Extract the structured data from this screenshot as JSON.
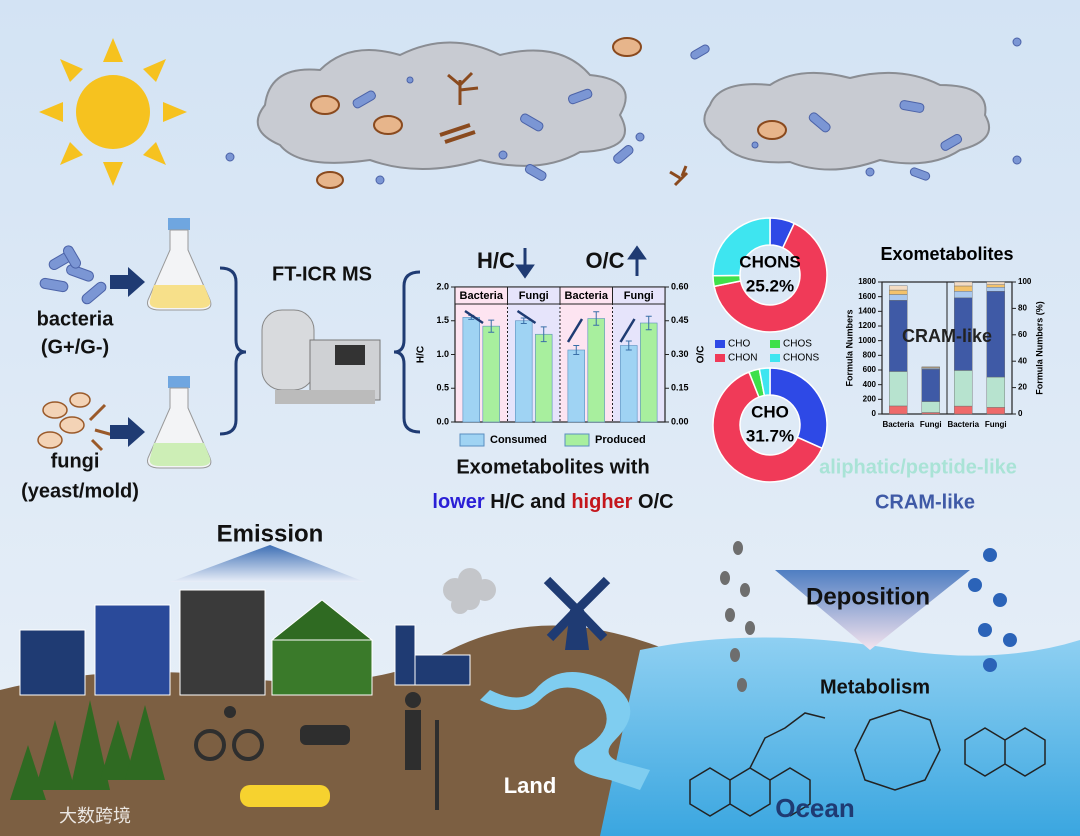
{
  "labels": {
    "bacteria": "bacteria",
    "bacteria_sub": "(G+/G-)",
    "fungi": "fungi",
    "fungi_sub": "(yeast/mold)",
    "instrument": "FT-ICR MS",
    "hc_title": "H/C",
    "oc_title": "O/C",
    "conclusion_title": "Exometabolites with",
    "conclusion": [
      "lower",
      "H/C and",
      "higher",
      "O/C"
    ],
    "aliphatic": "aliphatic/peptide-like",
    "cram": "CRAM-like",
    "emission": "Emission",
    "deposition": "Deposition",
    "metabolism": "Metabolism",
    "land": "Land",
    "ocean": "Ocean",
    "watermark": "大数跨境"
  },
  "chart_data": [
    {
      "type": "bar",
      "categories": [
        "Bacteria",
        "Fungi",
        "Bacteria",
        "Fungi"
      ],
      "category_axis": [
        "y",
        "y",
        "y2",
        "y2"
      ],
      "category_fills": [
        "#fde4f1",
        "#e6e4fb",
        "#fde4f1",
        "#e6e4fb"
      ],
      "series": [
        {
          "name": "Consumed",
          "color": "#9fd3f3",
          "values": [
            1.55,
            1.5,
            0.32,
            0.34
          ],
          "errors": [
            0.03,
            0.04,
            0.02,
            0.02
          ]
        },
        {
          "name": "Produced",
          "color": "#a8ef9e",
          "values": [
            1.42,
            1.3,
            0.46,
            0.44
          ],
          "errors": [
            0.09,
            0.11,
            0.03,
            0.03
          ]
        }
      ],
      "ylabel": "H/C",
      "y2label": "O/C",
      "ylim": [
        0,
        2
      ],
      "yticks": [
        {
          "value": 0,
          "label": "0.0"
        },
        {
          "value": 0.5,
          "label": "0.5"
        },
        {
          "value": 1,
          "label": "1.0"
        },
        {
          "value": 1.5,
          "label": "1.5"
        },
        {
          "value": 2,
          "label": "2.0"
        }
      ],
      "y2lim": [
        0,
        0.6
      ],
      "y2ticks": [
        {
          "value": 0,
          "label": "0.00"
        },
        {
          "value": 0.15,
          "label": "0.15"
        },
        {
          "value": 0.3,
          "label": "0.30"
        },
        {
          "value": 0.45,
          "label": "0.45"
        },
        {
          "value": 0.6,
          "label": "0.60"
        }
      ]
    },
    {
      "type": "pie",
      "categories": [
        "CHO",
        "CHON",
        "CHOS",
        "CHONS"
      ],
      "colors": [
        "#2e49e6",
        "#f03a58",
        "#3fe04a",
        "#3ee5f0"
      ],
      "values": [
        7,
        64.8,
        3,
        25.2
      ],
      "value_labels": [
        null,
        null,
        null,
        "25.2%"
      ],
      "center": 3,
      "legend": true
    },
    {
      "type": "pie",
      "categories": [
        "CHO",
        "CHON",
        "CHOS",
        "CHONS"
      ],
      "colors": [
        "#2e49e6",
        "#f03a58",
        "#3fe04a",
        "#3ee5f0"
      ],
      "values": [
        31.7,
        62.3,
        3,
        3
      ],
      "value_labels": [
        "31.7%",
        null,
        null,
        null
      ],
      "center": 0,
      "legend": false
    },
    {
      "type": "stacked_bar",
      "title": "Exometabolites",
      "annotation": "CRAM-like",
      "categories": [
        "Bacteria",
        "Fungi",
        "Bacteria",
        "Fungi"
      ],
      "category_axis": [
        "y",
        "y",
        "y2",
        "y2"
      ],
      "series": [
        {
          "color": "#ee6a6a",
          "values": [
            110,
            20,
            6,
            5
          ]
        },
        {
          "color": "#b7e3cf",
          "values": [
            470,
            150,
            27,
            23
          ]
        },
        {
          "color": "#3f5aa6",
          "values": [
            970,
            440,
            55,
            65
          ]
        },
        {
          "color": "#a9c8ee",
          "values": [
            80,
            15,
            5,
            3
          ]
        },
        {
          "color": "#f3c26b",
          "values": [
            60,
            10,
            4,
            2
          ]
        },
        {
          "color": "#f3dcc4",
          "values": [
            60,
            8,
            3,
            2
          ]
        }
      ],
      "ylabel": "Formula Numbers",
      "y2label": "Formula Numbers (%)",
      "ylim": [
        0,
        1800
      ],
      "yticks": [
        0,
        200,
        400,
        600,
        800,
        1000,
        1200,
        1400,
        1600,
        1800
      ],
      "y2lim": [
        0,
        100
      ],
      "y2ticks": [
        0,
        20,
        40,
        60,
        80,
        100
      ]
    }
  ]
}
